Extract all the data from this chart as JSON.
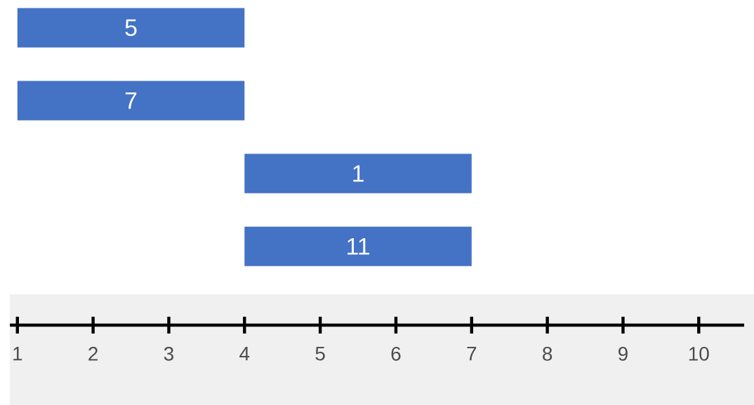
{
  "chart_data": {
    "type": "bar",
    "orientation": "horizontal",
    "categories": [
      "5",
      "7",
      "1",
      "11"
    ],
    "base": [
      1,
      1,
      4,
      4
    ],
    "values": [
      3,
      3,
      3,
      3
    ],
    "color": "#4472c4",
    "xlim": [
      0.9,
      10.6
    ],
    "xticks": [
      1,
      2,
      3,
      4,
      5,
      6,
      7,
      8,
      9,
      10
    ]
  }
}
